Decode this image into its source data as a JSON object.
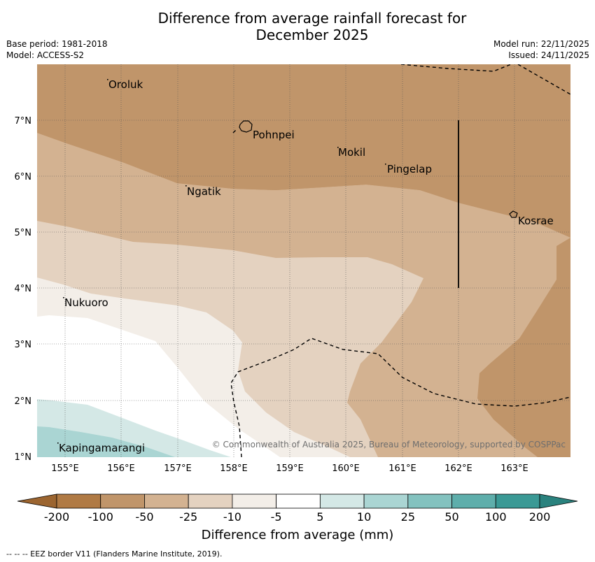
{
  "title_line1": "Difference from average rainfall forecast for",
  "title_line2": "December 2025",
  "base_period": "Base period: 1981-2018",
  "model": "Model: ACCESS-S2",
  "model_run": "Model run: 22/11/2025",
  "issued": "Issued: 24/11/2025",
  "copyright": "© Commonwealth of Australia 2025, Bureau of Meteorology, supported by COSPPac",
  "places": {
    "oroluk": "Oroluk",
    "pohnpei": "Pohnpei",
    "mokil": "Mokil",
    "pingelap": "Pingelap",
    "ngatik": "Ngatik",
    "kosrae": "Kosrae",
    "nukuoro": "Nukuoro",
    "kapingamarangi": "Kapingamarangi"
  },
  "lat_ticks": [
    "7°N",
    "6°N",
    "5°N",
    "4°N",
    "3°N",
    "2°N",
    "1°N"
  ],
  "lon_ticks": [
    "155°E",
    "156°E",
    "157°E",
    "158°E",
    "159°E",
    "160°E",
    "161°E",
    "162°E",
    "163°E"
  ],
  "colorbar": {
    "labels": [
      "-200",
      "-100",
      "-50",
      "-25",
      "-10",
      "-5",
      "5",
      "10",
      "25",
      "50",
      "100",
      "200"
    ],
    "colors": [
      "#9c6530",
      "#b07a44",
      "#c0956a",
      "#d3b291",
      "#e4d2c0",
      "#f3eee8",
      "#ffffff",
      "#d4e8e6",
      "#aad5d3",
      "#83c2bf",
      "#5eaeab",
      "#3a9995",
      "#2a827e"
    ],
    "title": "Difference from average (mm)"
  },
  "legend_footer": "--  --  -- EEZ border V11 (Flanders Marine Institute, 2019)."
}
